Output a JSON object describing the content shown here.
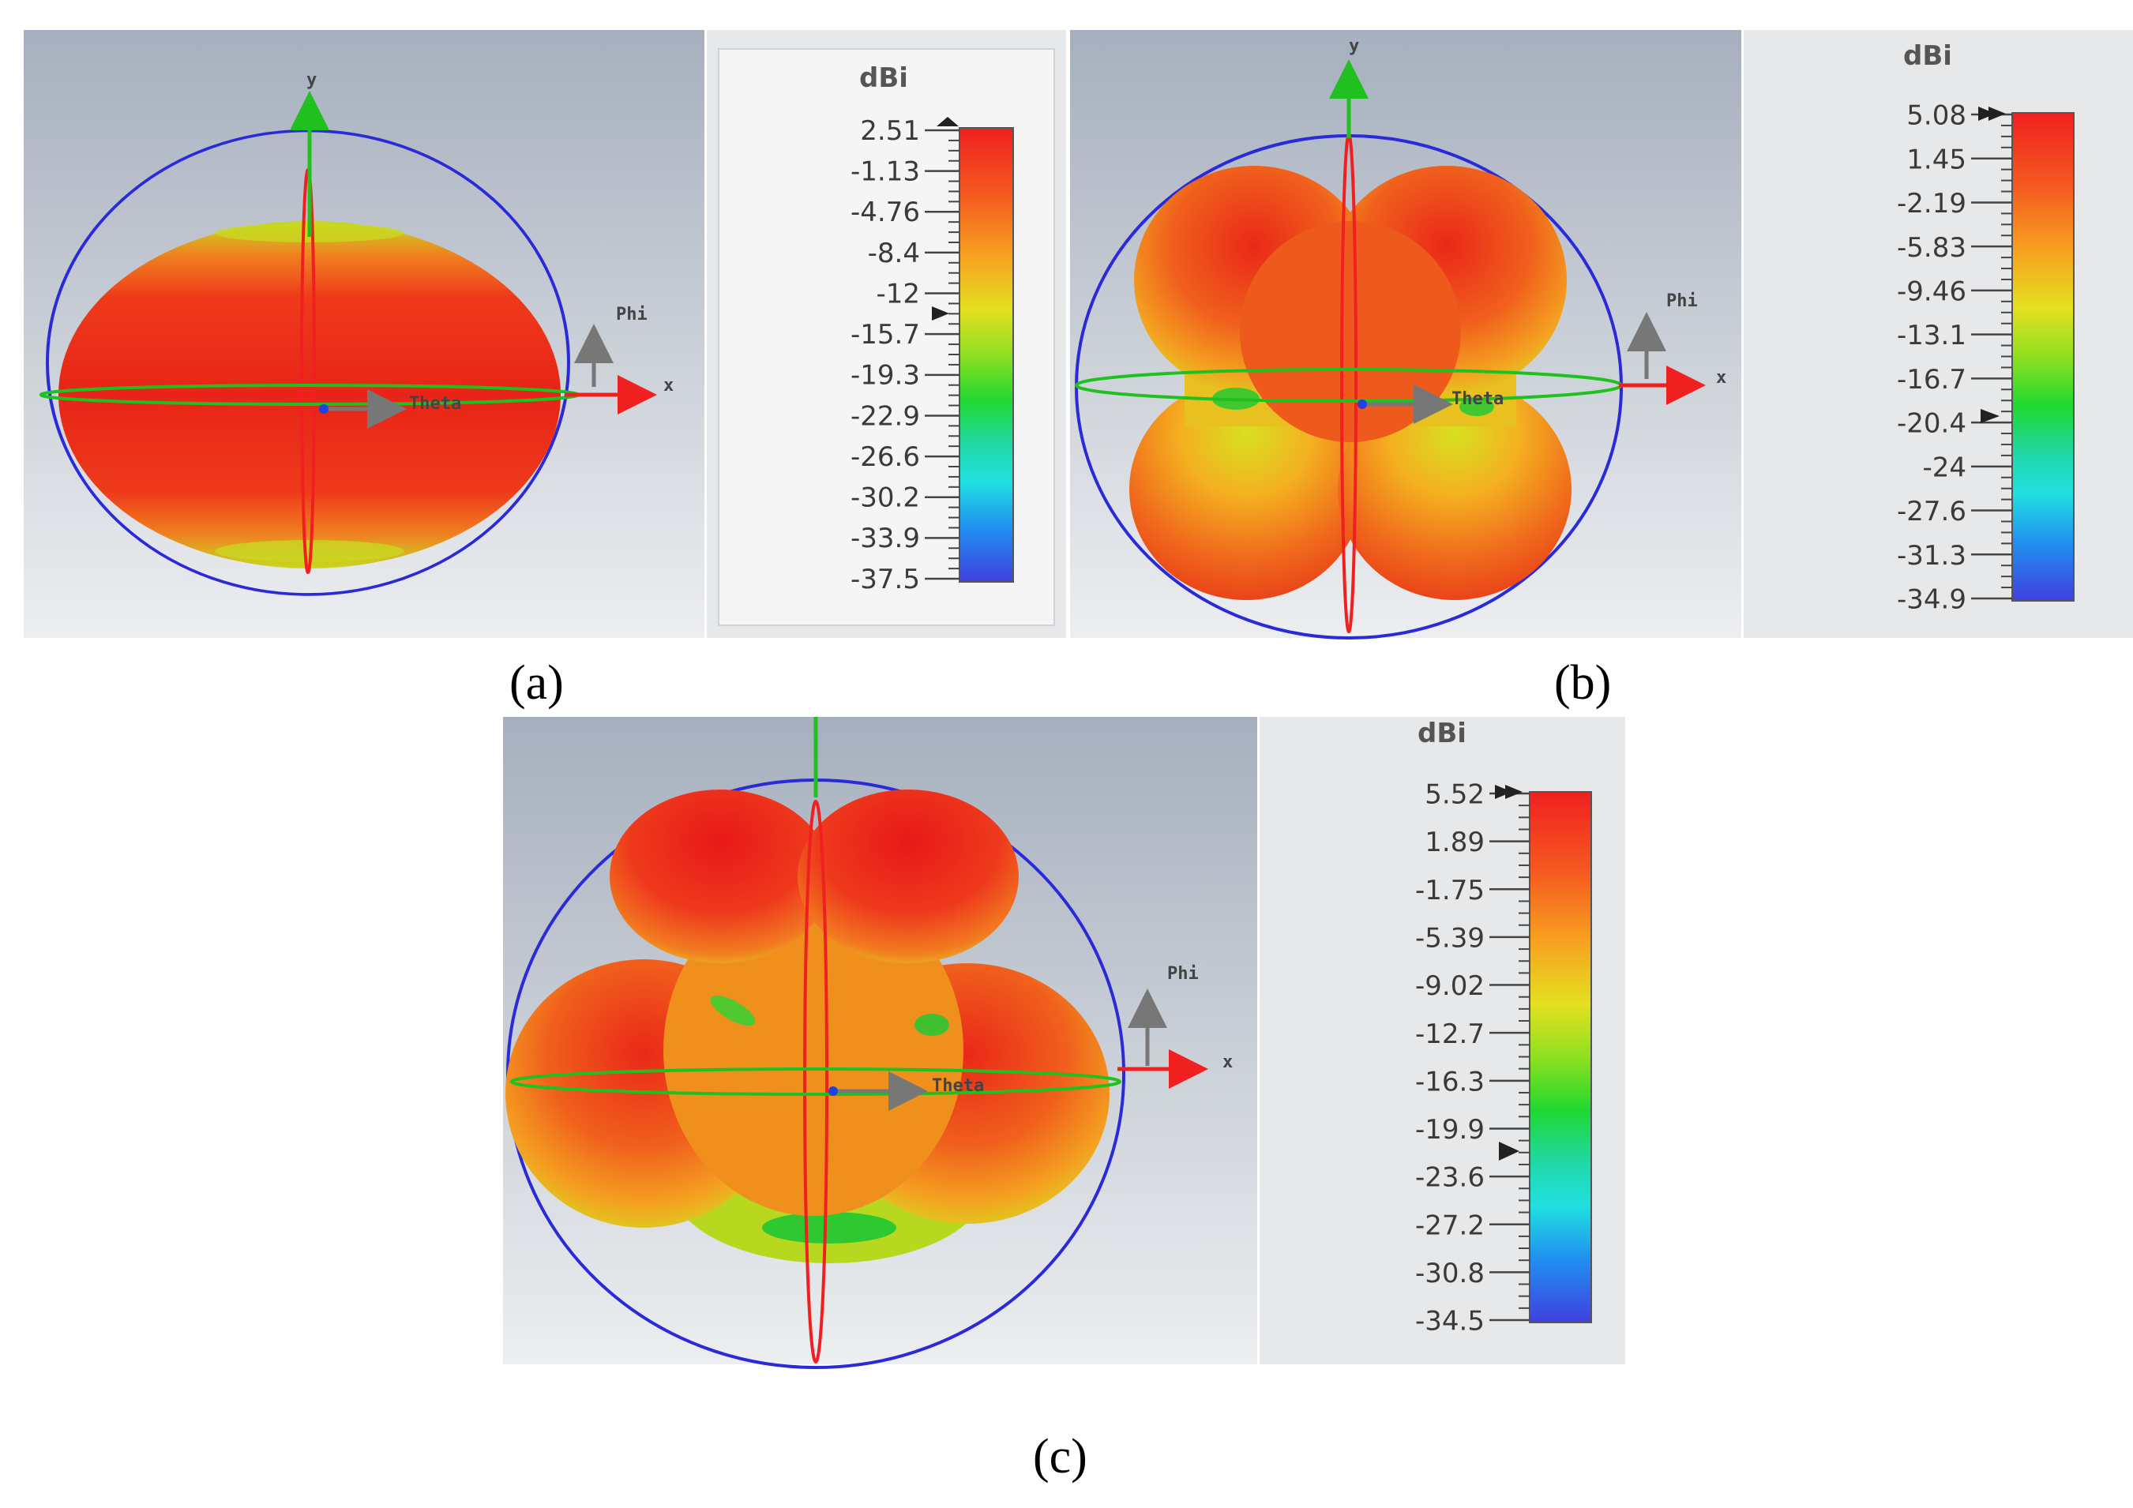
{
  "figure": {
    "panels": [
      {
        "label": "(a)",
        "unit": "dBi",
        "ticks": [
          "2.51",
          "-1.13",
          "-4.76",
          "-8.4",
          "-12",
          "-15.7",
          "-19.3",
          "-22.9",
          "-26.6",
          "-30.2",
          "-33.9",
          "-37.5"
        ],
        "axis_labels": {
          "y": "y",
          "x": "x",
          "phi": "Phi",
          "theta": "Theta"
        }
      },
      {
        "label": "(b)",
        "unit": "dBi",
        "ticks": [
          "5.08",
          "1.45",
          "-2.19",
          "-5.83",
          "-9.46",
          "-13.1",
          "-16.7",
          "-20.4",
          "-24",
          "-27.6",
          "-31.3",
          "-34.9"
        ],
        "axis_labels": {
          "y": "y",
          "x": "x",
          "phi": "Phi",
          "theta": "Theta"
        }
      },
      {
        "label": "(c)",
        "unit": "dBi",
        "ticks": [
          "5.52",
          "1.89",
          "-1.75",
          "-5.39",
          "-9.02",
          "-12.7",
          "-16.3",
          "-19.9",
          "-23.6",
          "-27.2",
          "-30.8",
          "-34.5"
        ],
        "axis_labels": {
          "y": "",
          "x": "x",
          "phi": "Phi",
          "theta": "Theta"
        }
      }
    ],
    "colors": {
      "scale": [
        "#f02020",
        "#f46020",
        "#f8a020",
        "#e8e020",
        "#90e020",
        "#20d820",
        "#20d8a0",
        "#20e0e0",
        "#20a0f0",
        "#2050f0",
        "#4040e0"
      ],
      "sphere_outline": "#2a2ad8",
      "y_axis": "#20c020",
      "x_axis": "#f02020",
      "equator": "#20c020",
      "meridian": "#f02020"
    }
  }
}
